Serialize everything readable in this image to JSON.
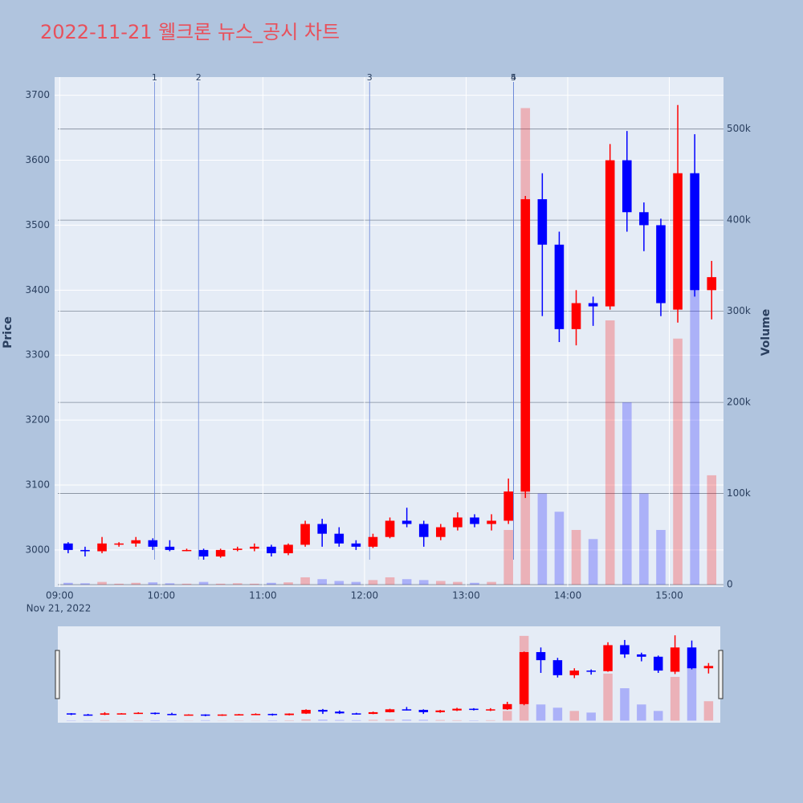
{
  "chart_data": {
    "type": "candlestick",
    "title": "2022-11-21 웰크론 뉴스_공시 차트",
    "y_label": "Price",
    "y2_label": "Volume",
    "x_date_label": "Nov 21, 2022",
    "x": [
      "09:00",
      "09:10",
      "09:20",
      "09:30",
      "09:40",
      "09:50",
      "10:00",
      "10:10",
      "10:20",
      "10:30",
      "10:40",
      "10:50",
      "11:00",
      "11:10",
      "11:20",
      "11:30",
      "11:40",
      "11:50",
      "12:00",
      "12:10",
      "12:20",
      "12:30",
      "12:40",
      "12:50",
      "13:00",
      "13:10",
      "13:20",
      "13:30",
      "13:40",
      "13:50",
      "14:00",
      "14:10",
      "14:20",
      "14:30",
      "14:40",
      "14:50",
      "15:00",
      "15:10",
      "15:20"
    ],
    "open": [
      3010,
      3000,
      2998,
      3010,
      3010,
      3015,
      3005,
      3000,
      3000,
      2990,
      3000,
      3002,
      3005,
      2995,
      3008,
      3040,
      3025,
      3010,
      3005,
      3020,
      3045,
      3040,
      3020,
      3035,
      3050,
      3040,
      3045,
      3090,
      3540,
      3470,
      3340,
      3380,
      3375,
      3600,
      3520,
      3500,
      3370,
      3580,
      3400
    ],
    "high": [
      3012,
      3005,
      3020,
      3012,
      3020,
      3018,
      3015,
      3002,
      3002,
      3002,
      3005,
      3010,
      3008,
      3010,
      3045,
      3048,
      3035,
      3015,
      3025,
      3050,
      3065,
      3045,
      3040,
      3058,
      3055,
      3055,
      3110,
      3545,
      3580,
      3490,
      3400,
      3390,
      3625,
      3645,
      3535,
      3510,
      3685,
      3640,
      3445
    ],
    "low": [
      2995,
      2990,
      2995,
      3005,
      3005,
      3000,
      2998,
      2998,
      2985,
      2988,
      2998,
      2998,
      2990,
      2992,
      3005,
      3005,
      3005,
      3000,
      3003,
      3018,
      3035,
      3005,
      3015,
      3030,
      3035,
      3030,
      3040,
      3080,
      3360,
      3320,
      3315,
      3345,
      3370,
      3490,
      3460,
      3360,
      3350,
      3390,
      3355
    ],
    "close": [
      3000,
      2998,
      3010,
      3010,
      3015,
      3005,
      3000,
      3000,
      2990,
      3000,
      3002,
      3005,
      2995,
      3008,
      3040,
      3025,
      3010,
      3005,
      3020,
      3045,
      3040,
      3020,
      3035,
      3050,
      3040,
      3045,
      3090,
      3540,
      3470,
      3340,
      3380,
      3375,
      3600,
      3520,
      3500,
      3380,
      3580,
      3400,
      3420
    ],
    "volume": [
      2000,
      1500,
      3000,
      1000,
      2000,
      2500,
      1500,
      1000,
      3000,
      1000,
      1500,
      1000,
      2000,
      2500,
      8000,
      6000,
      4000,
      3000,
      5000,
      8000,
      6000,
      5000,
      4000,
      3000,
      2000,
      3000,
      60000,
      523000,
      100000,
      80000,
      60000,
      50000,
      290000,
      200000,
      100000,
      60000,
      270000,
      340000,
      120000
    ],
    "increasing_color": "#ff0000",
    "decreasing_color": "#0000ff",
    "xlim": [
      "08:57",
      "15:32"
    ],
    "xticks": [
      "09:00",
      "10:00",
      "11:00",
      "12:00",
      "13:00",
      "14:00",
      "15:00"
    ],
    "ylim": [
      2943,
      3728
    ],
    "yticks": [
      3000,
      3100,
      3200,
      3300,
      3400,
      3500,
      3600,
      3700
    ],
    "y2lim": [
      -2600,
      557000
    ],
    "y2ticks": [
      0,
      {
        "value": 100000,
        "label": "100k"
      },
      {
        "value": 200000,
        "label": "200k"
      },
      {
        "value": 300000,
        "label": "300k"
      },
      {
        "value": 400000,
        "label": "400k"
      },
      {
        "value": 500000,
        "label": "500k"
      }
    ],
    "news": [
      {
        "x": "09:56",
        "label": "1"
      },
      {
        "x": "10:22",
        "label": "2"
      },
      {
        "x": "12:03",
        "label": "3"
      },
      {
        "x": "13:28",
        "label": "4"
      },
      {
        "x": "13:28",
        "label": "5"
      }
    ],
    "grid": true
  }
}
